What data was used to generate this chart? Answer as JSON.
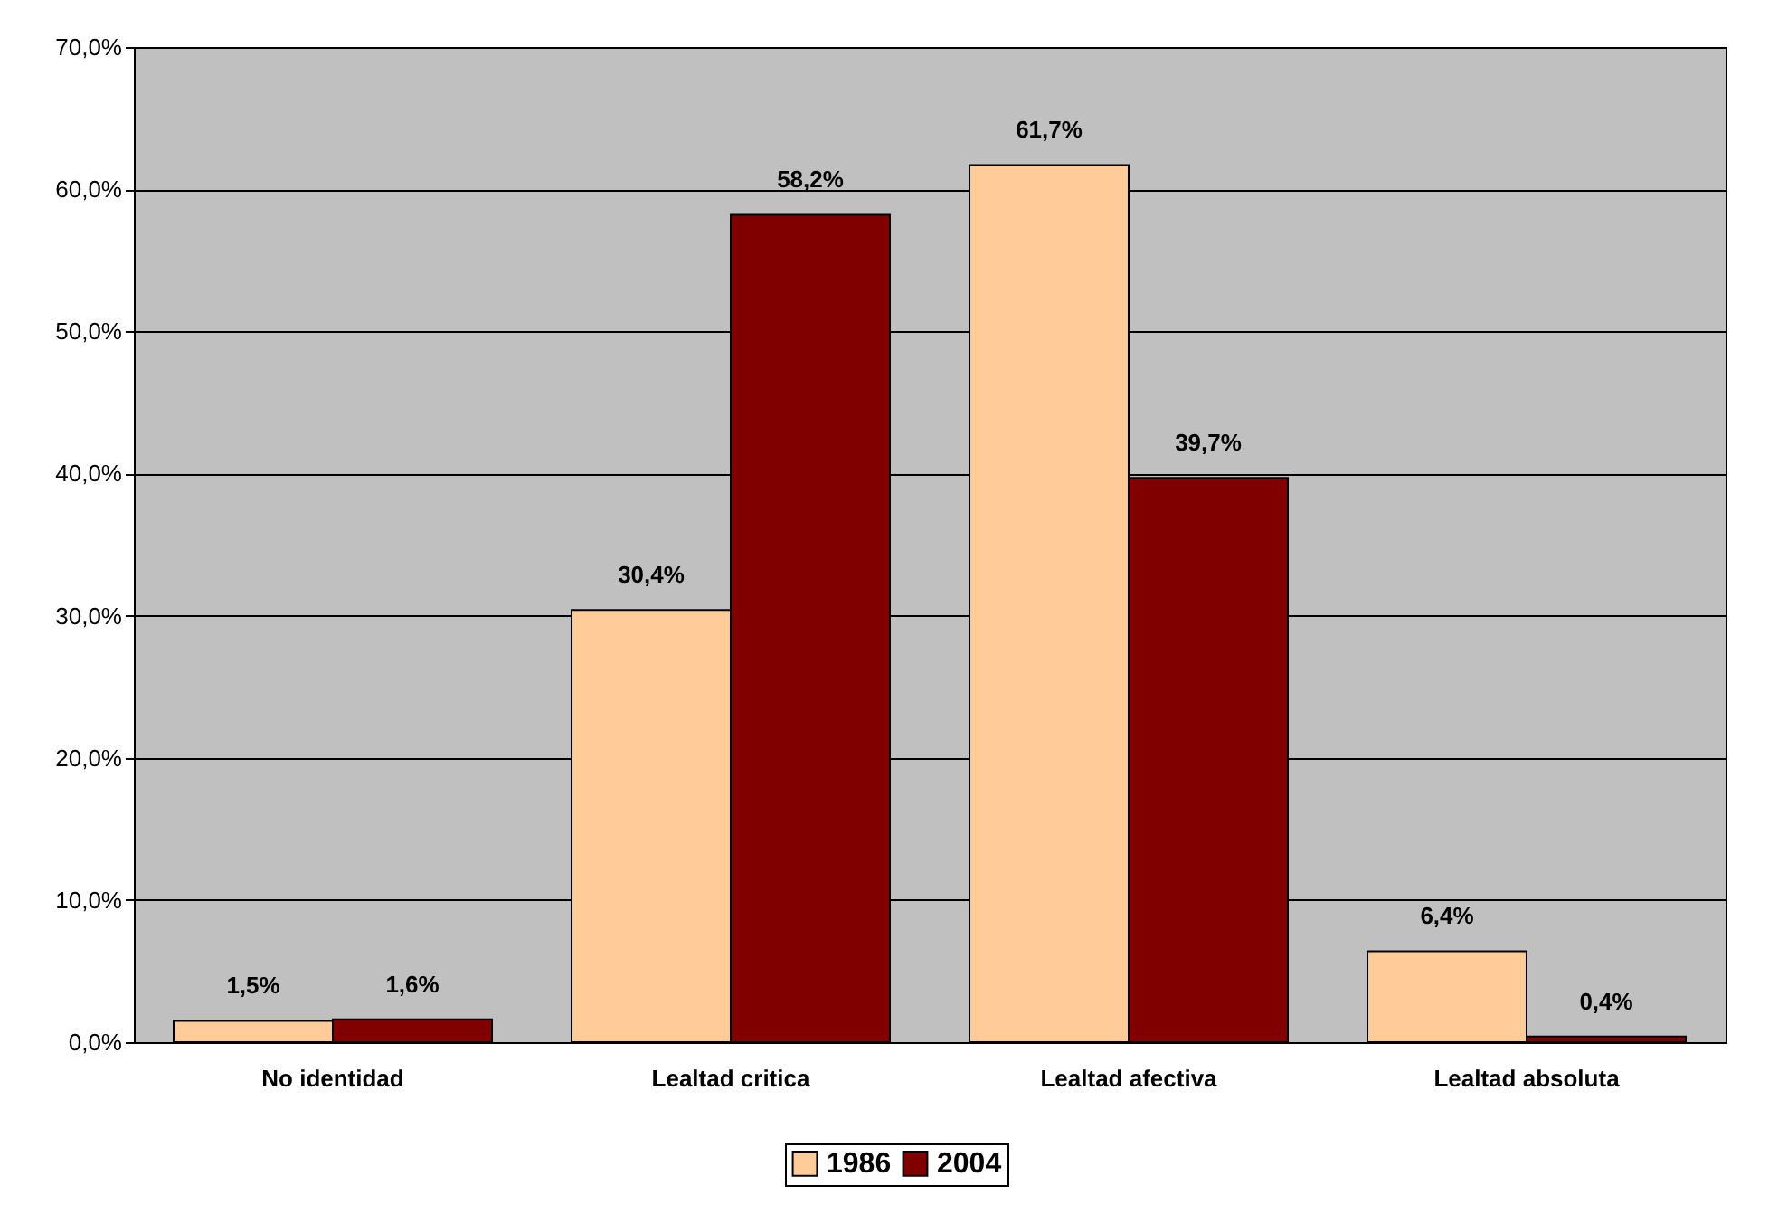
{
  "chart_data": {
    "type": "bar",
    "categories": [
      "No identidad",
      "Lealtad critica",
      "Lealtad afectiva",
      "Lealtad absoluta"
    ],
    "series": [
      {
        "name": "1986",
        "color": "#ffcc99",
        "values": [
          1.5,
          30.4,
          61.7,
          6.4
        ],
        "value_labels": [
          "1,5%",
          "30,4%",
          "61,7%",
          "6,4%"
        ]
      },
      {
        "name": "2004",
        "color": "#800000",
        "values": [
          1.6,
          58.2,
          39.7,
          0.4
        ],
        "value_labels": [
          "1,6%",
          "58,2%",
          "39,7%",
          "0,4%"
        ]
      }
    ],
    "ylim": [
      0,
      70
    ],
    "yticks": [
      {
        "value": 0,
        "label": "0,0%"
      },
      {
        "value": 10,
        "label": "10,0%"
      },
      {
        "value": 20,
        "label": "20,0%"
      },
      {
        "value": 30,
        "label": "30,0%"
      },
      {
        "value": 40,
        "label": "40,0%"
      },
      {
        "value": 50,
        "label": "50,0%"
      },
      {
        "value": 60,
        "label": "60,0%"
      },
      {
        "value": 70,
        "label": "70,0%"
      }
    ],
    "grid": "y",
    "legend": "bottom"
  }
}
